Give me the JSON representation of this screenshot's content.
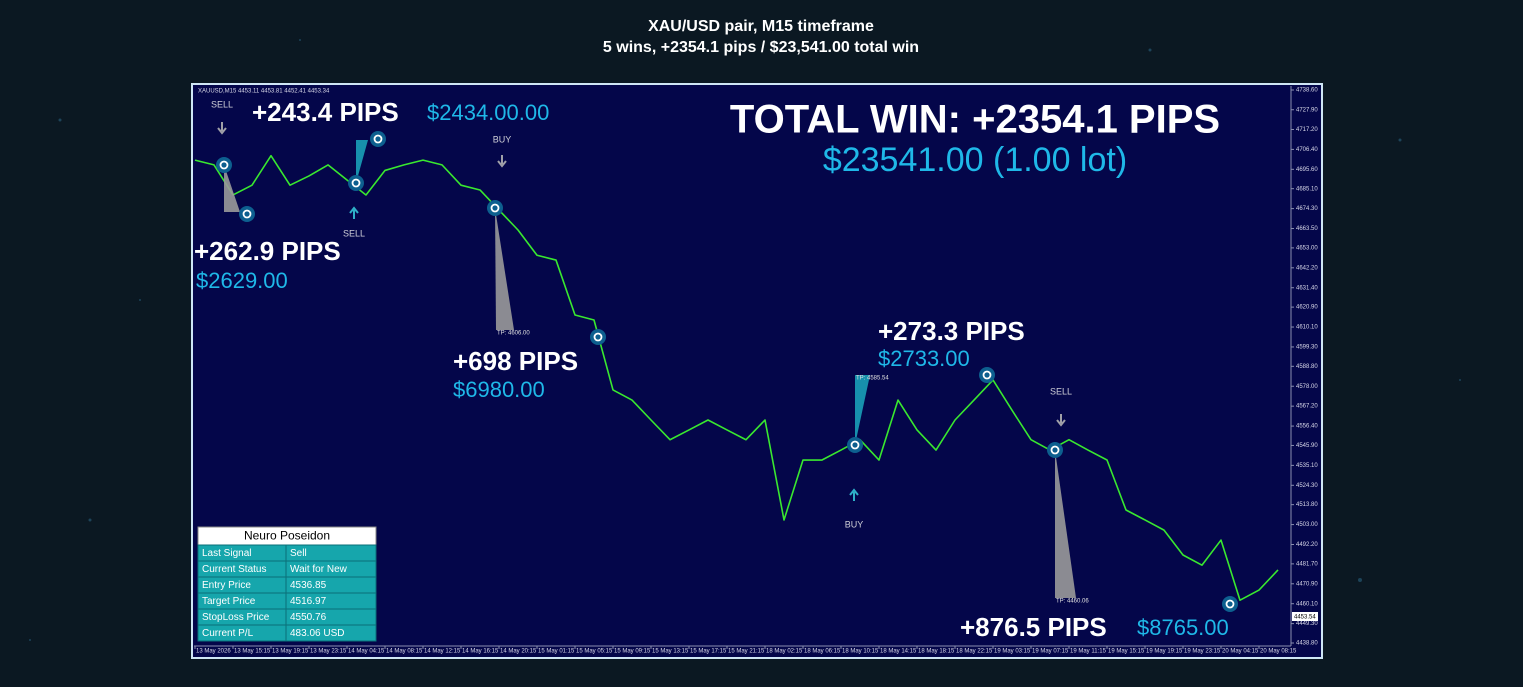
{
  "header": {
    "line1": "XAU/USD pair, M15 timeframe",
    "line2": "5 wins, +2354.1 pips / $23,541.00 total win"
  },
  "chart_data": {
    "type": "line",
    "title": "XAUUSD,M15  4453.11 4453.81 4452.41 4453.34",
    "color": "#39e82f",
    "categories": [
      "13 May 2026",
      null,
      "13 May 15:15",
      null,
      "13 May 19:15",
      null,
      "13 May 23:15",
      null,
      "14 May 04:15",
      null,
      "14 May 08:15",
      null,
      "14 May 12:15",
      null,
      "14 May 16:15",
      null,
      "14 May 20:15",
      null,
      "15 May 01:15",
      null,
      "15 May 05:15",
      null,
      "15 May 09:15",
      null,
      "15 May 13:15",
      null,
      "15 May 17:15",
      null,
      "15 May 21:15",
      null,
      "18 May 02:15",
      null,
      "18 May 06:15",
      null,
      "18 May 10:15",
      null,
      "18 May 14:15",
      null,
      "18 May 18:15",
      null,
      "18 May 22:15",
      null,
      "19 May 03:15",
      null,
      "19 May 07:15",
      null,
      "19 May 11:15",
      null,
      "19 May 15:15",
      null,
      "19 May 19:15",
      null,
      "19 May 23:15",
      null,
      "20 May 04:15",
      null,
      "20 May 08:15",
      null
    ],
    "values": [
      4700.6,
      4698,
      4681.7,
      4687,
      4703,
      4687,
      4692,
      4698,
      4689.8,
      4681.7,
      4695,
      4698,
      4700.6,
      4698,
      4687,
      4684.4,
      4673.5,
      4662.7,
      4649,
      4646.4,
      4616.6,
      4613.9,
      4576,
      4570.5,
      4559.7,
      4549,
      4554.3,
      4559.7,
      4554.3,
      4549,
      4559.7,
      4505.5,
      4538,
      4538,
      4543.4,
      4549,
      4538,
      4570.5,
      4554.3,
      4543.4,
      4559.7,
      4570.5,
      4581.4,
      4565,
      4549,
      4543.4,
      4549,
      4543.4,
      4538,
      4510.9,
      4505.5,
      4500,
      4486.5,
      4481,
      4494.6,
      4462,
      4467.5,
      4478.4
    ],
    "ylim": [
      4438.8,
      4738.6
    ],
    "yticks": [
      {
        "value": 4738.6,
        "label": "4738.60"
      },
      {
        "value": 4727.9,
        "label": "4727.90"
      },
      {
        "value": 4717.2,
        "label": "4717.20"
      },
      {
        "value": 4706.4,
        "label": "4706.40"
      },
      {
        "value": 4695.6,
        "label": "4695.60"
      },
      {
        "value": 4685.1,
        "label": "4685.10"
      },
      {
        "value": 4674.3,
        "label": "4674.30"
      },
      {
        "value": 4663.5,
        "label": "4663.50"
      },
      {
        "value": 4653,
        "label": "4653.00"
      },
      {
        "value": 4642.2,
        "label": "4642.20"
      },
      {
        "value": 4631.4,
        "label": "4631.40"
      },
      {
        "value": 4620.9,
        "label": "4620.90"
      },
      {
        "value": 4610.1,
        "label": "4610.10"
      },
      {
        "value": 4599.3,
        "label": "4599.30"
      },
      {
        "value": 4588.8,
        "label": "4588.80"
      },
      {
        "value": 4578,
        "label": "4578.00"
      },
      {
        "value": 4567.2,
        "label": "4567.20"
      },
      {
        "value": 4556.4,
        "label": "4556.40"
      },
      {
        "value": 4545.9,
        "label": "4545.90"
      },
      {
        "value": 4535.1,
        "label": "4535.10"
      },
      {
        "value": 4524.3,
        "label": "4524.30"
      },
      {
        "value": 4513.8,
        "label": "4513.80"
      },
      {
        "value": 4503,
        "label": "4503.00"
      },
      {
        "value": 4492.2,
        "label": "4492.20"
      },
      {
        "value": 4481.7,
        "label": "4481.70"
      },
      {
        "value": 4470.9,
        "label": "4470.90"
      },
      {
        "value": 4460.1,
        "label": "4460.10"
      },
      {
        "value": 4449.3,
        "label": "4449.30"
      },
      {
        "value": 4438.8,
        "label": "4438.80"
      }
    ],
    "current_price": "4453.54",
    "grid": false
  },
  "annotations": {
    "total": [
      "TOTAL WIN: +2354.1 PIPS",
      "$23541.00 (1.00 lot)"
    ],
    "trades": [
      [
        "+243.4 PIPS",
        "$2434.00.00"
      ],
      [
        "+262.9 PIPS",
        "$2629.00"
      ],
      [
        "+698 PIPS",
        "$6980.00"
      ],
      [
        "+273.3 PIPS",
        "$2733.00"
      ],
      [
        "+876.5 PIPS",
        "$8765.00"
      ]
    ],
    "signals": [
      "SELL",
      "BUY",
      "SELL",
      "BUY",
      "SELL"
    ],
    "targets": [
      "TP: 4606.00",
      "TP: 4585.54",
      "TP: 4460.06"
    ]
  },
  "info_panel": {
    "title": "Neuro Poseidon",
    "rows": [
      [
        "Last Signal",
        "Sell"
      ],
      [
        "Current Status",
        "Wait for New"
      ],
      [
        "Entry Price",
        "4536.85"
      ],
      [
        "Target Price",
        "4516.97"
      ],
      [
        "StopLoss Price",
        "4550.76"
      ],
      [
        "Current P/L",
        "483.06 USD"
      ]
    ]
  }
}
